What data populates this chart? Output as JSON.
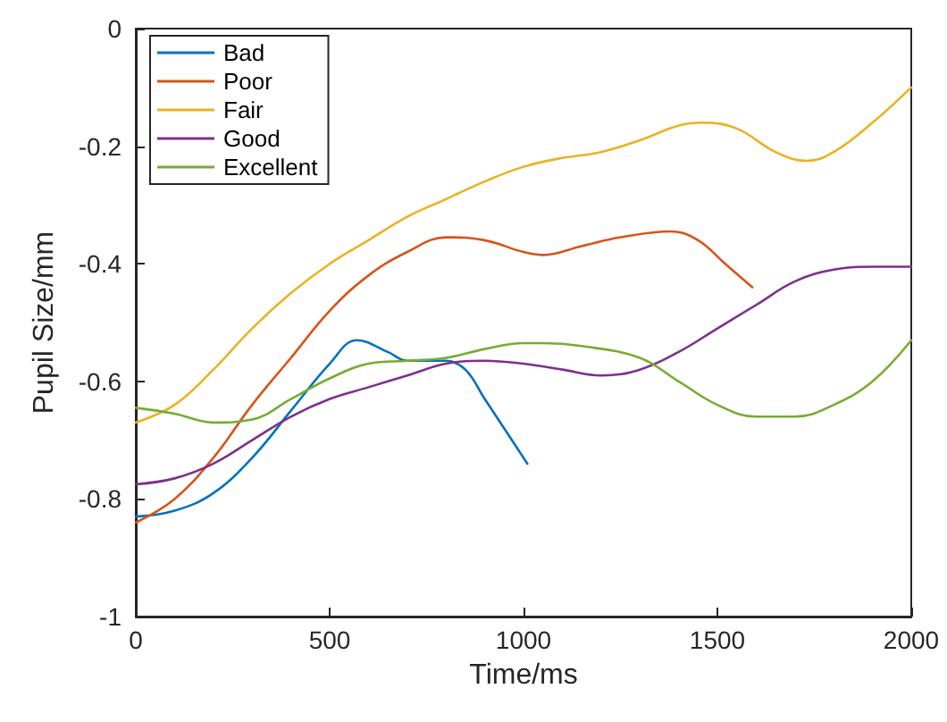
{
  "chart_data": {
    "type": "line",
    "xlabel": "Time/ms",
    "ylabel": "Pupil Size/mm",
    "xlim": [
      0,
      2000
    ],
    "xticks": [
      0,
      500,
      1000,
      1500,
      2000
    ],
    "ylim": [
      -1,
      0
    ],
    "yticks": [
      -1,
      -0.8,
      -0.6,
      -0.4,
      -0.2,
      0
    ],
    "grid": false,
    "legend": "top left",
    "marker": "none",
    "line_style": "solid",
    "series": [
      {
        "name": "Bad",
        "color": "#0072bd",
        "x": [
          0,
          100,
          200,
          300,
          400,
          500,
          570,
          650,
          700,
          800,
          850,
          900,
          1010
        ],
        "values": [
          -0.83,
          -0.82,
          -0.79,
          -0.73,
          -0.65,
          -0.57,
          -0.53,
          -0.55,
          -0.565,
          -0.565,
          -0.58,
          -0.63,
          -0.74
        ]
      },
      {
        "name": "Poor",
        "color": "#d95319",
        "x": [
          0,
          100,
          200,
          300,
          400,
          500,
          600,
          700,
          800,
          900,
          1000,
          1050,
          1150,
          1250,
          1380,
          1450,
          1520,
          1590
        ],
        "values": [
          -0.84,
          -0.8,
          -0.73,
          -0.64,
          -0.56,
          -0.48,
          -0.42,
          -0.38,
          -0.355,
          -0.36,
          -0.38,
          -0.385,
          -0.37,
          -0.355,
          -0.345,
          -0.36,
          -0.4,
          -0.44
        ]
      },
      {
        "name": "Fair",
        "color": "#edb120",
        "x": [
          0,
          100,
          200,
          300,
          400,
          500,
          600,
          700,
          800,
          900,
          1000,
          1100,
          1200,
          1300,
          1400,
          1460,
          1550,
          1650,
          1730,
          1800,
          1900,
          2000
        ],
        "values": [
          -0.67,
          -0.64,
          -0.58,
          -0.51,
          -0.45,
          -0.4,
          -0.36,
          -0.32,
          -0.29,
          -0.26,
          -0.235,
          -0.22,
          -0.21,
          -0.19,
          -0.165,
          -0.16,
          -0.17,
          -0.21,
          -0.225,
          -0.21,
          -0.16,
          -0.1
        ]
      },
      {
        "name": "Good",
        "color": "#7e2f8e",
        "x": [
          0,
          100,
          200,
          300,
          400,
          500,
          600,
          700,
          800,
          900,
          1000,
          1100,
          1200,
          1300,
          1400,
          1500,
          1600,
          1700,
          1800,
          1900,
          2000
        ],
        "values": [
          -0.775,
          -0.765,
          -0.74,
          -0.7,
          -0.66,
          -0.63,
          -0.61,
          -0.59,
          -0.57,
          -0.565,
          -0.57,
          -0.58,
          -0.59,
          -0.58,
          -0.55,
          -0.51,
          -0.47,
          -0.43,
          -0.41,
          -0.405,
          -0.405
        ]
      },
      {
        "name": "Excellent",
        "color": "#77ac30",
        "x": [
          0,
          100,
          200,
          300,
          400,
          500,
          600,
          700,
          800,
          900,
          1000,
          1050,
          1150,
          1300,
          1400,
          1500,
          1600,
          1700,
          1800,
          1900,
          2000
        ],
        "values": [
          -0.645,
          -0.655,
          -0.67,
          -0.665,
          -0.63,
          -0.595,
          -0.57,
          -0.565,
          -0.56,
          -0.545,
          -0.535,
          -0.535,
          -0.54,
          -0.56,
          -0.6,
          -0.64,
          -0.66,
          -0.66,
          -0.64,
          -0.6,
          -0.53
        ]
      }
    ]
  }
}
